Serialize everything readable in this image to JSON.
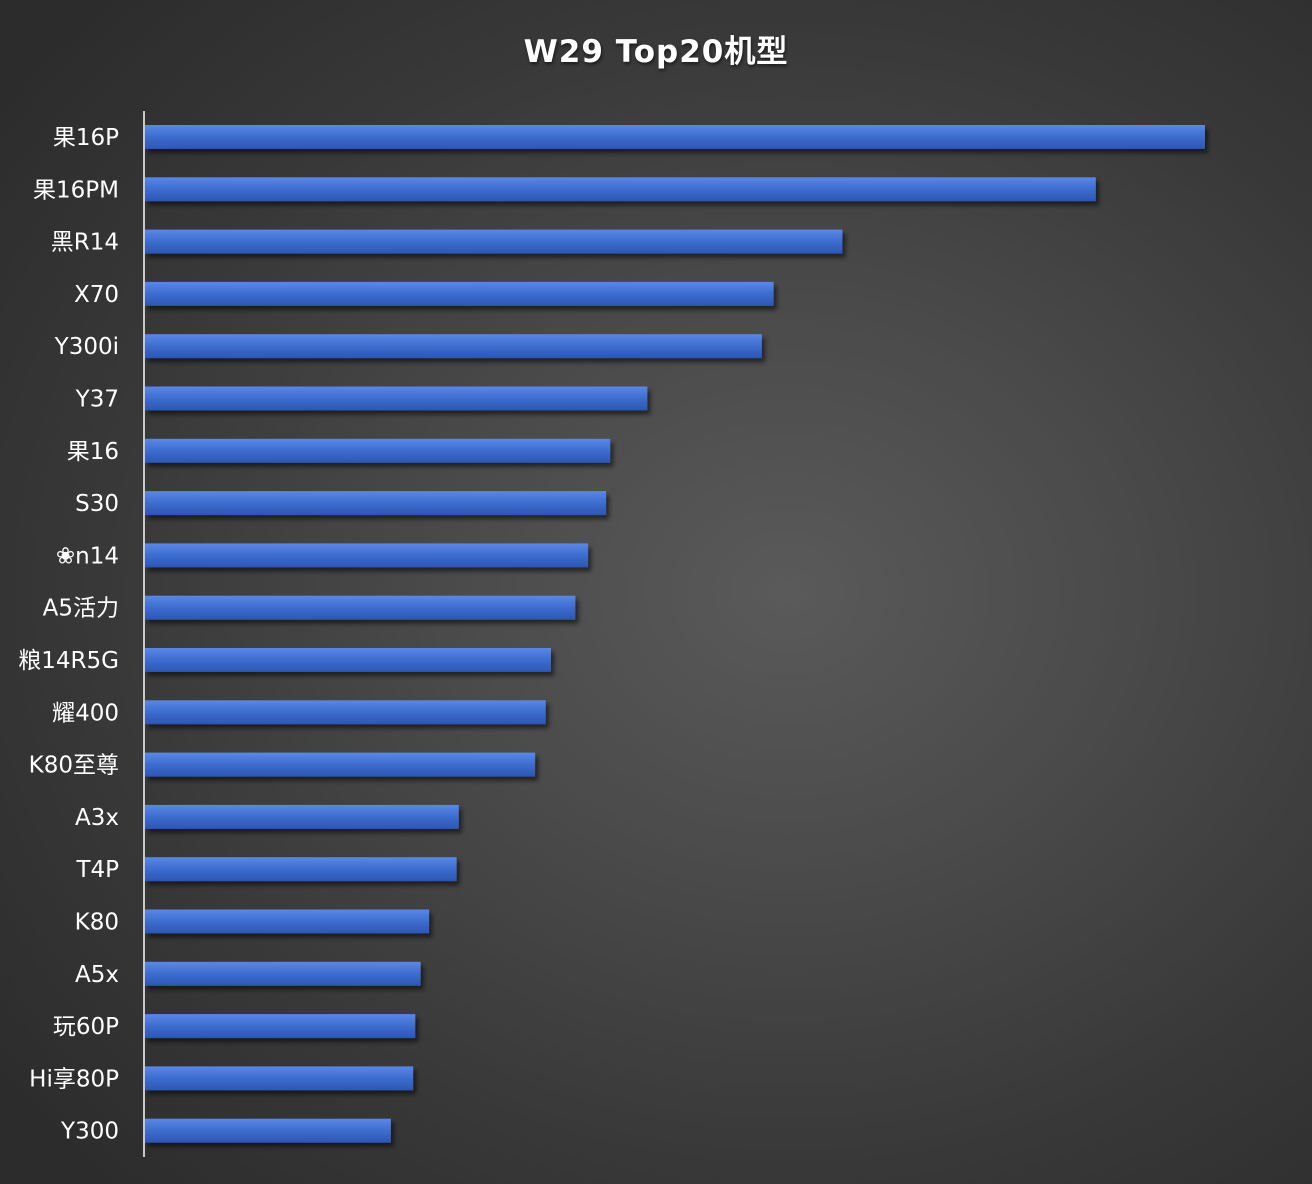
{
  "chart_data": {
    "type": "bar",
    "orientation": "horizontal",
    "title": "W29 Top20机型",
    "xlabel": "",
    "ylabel": "",
    "categories": [
      "果16P",
      "果16PM",
      "黑R14",
      "X70",
      "Y300i",
      "Y37",
      "果16",
      "S30",
      "❀n14",
      "A5活力",
      "粮14R5G",
      "耀400",
      "K80至尊",
      "A3x",
      "T4P",
      "K80",
      "A5x",
      "玩60P",
      "Hi享80P",
      "Y300"
    ],
    "values": [
      100,
      89.7,
      65.8,
      59.3,
      58.2,
      47.4,
      43.9,
      43.5,
      41.8,
      40.6,
      38.3,
      37.8,
      36.8,
      29.6,
      29.4,
      26.8,
      26.0,
      25.5,
      25.3,
      23.2
    ],
    "xlim": [
      0,
      100
    ],
    "grid": false,
    "legend": "none",
    "bar_color": "#3f6fd1",
    "bar_color_light": "#5b88e6",
    "bar_color_dark": "#2c56b3",
    "axis_color": "#c8c8c8"
  }
}
